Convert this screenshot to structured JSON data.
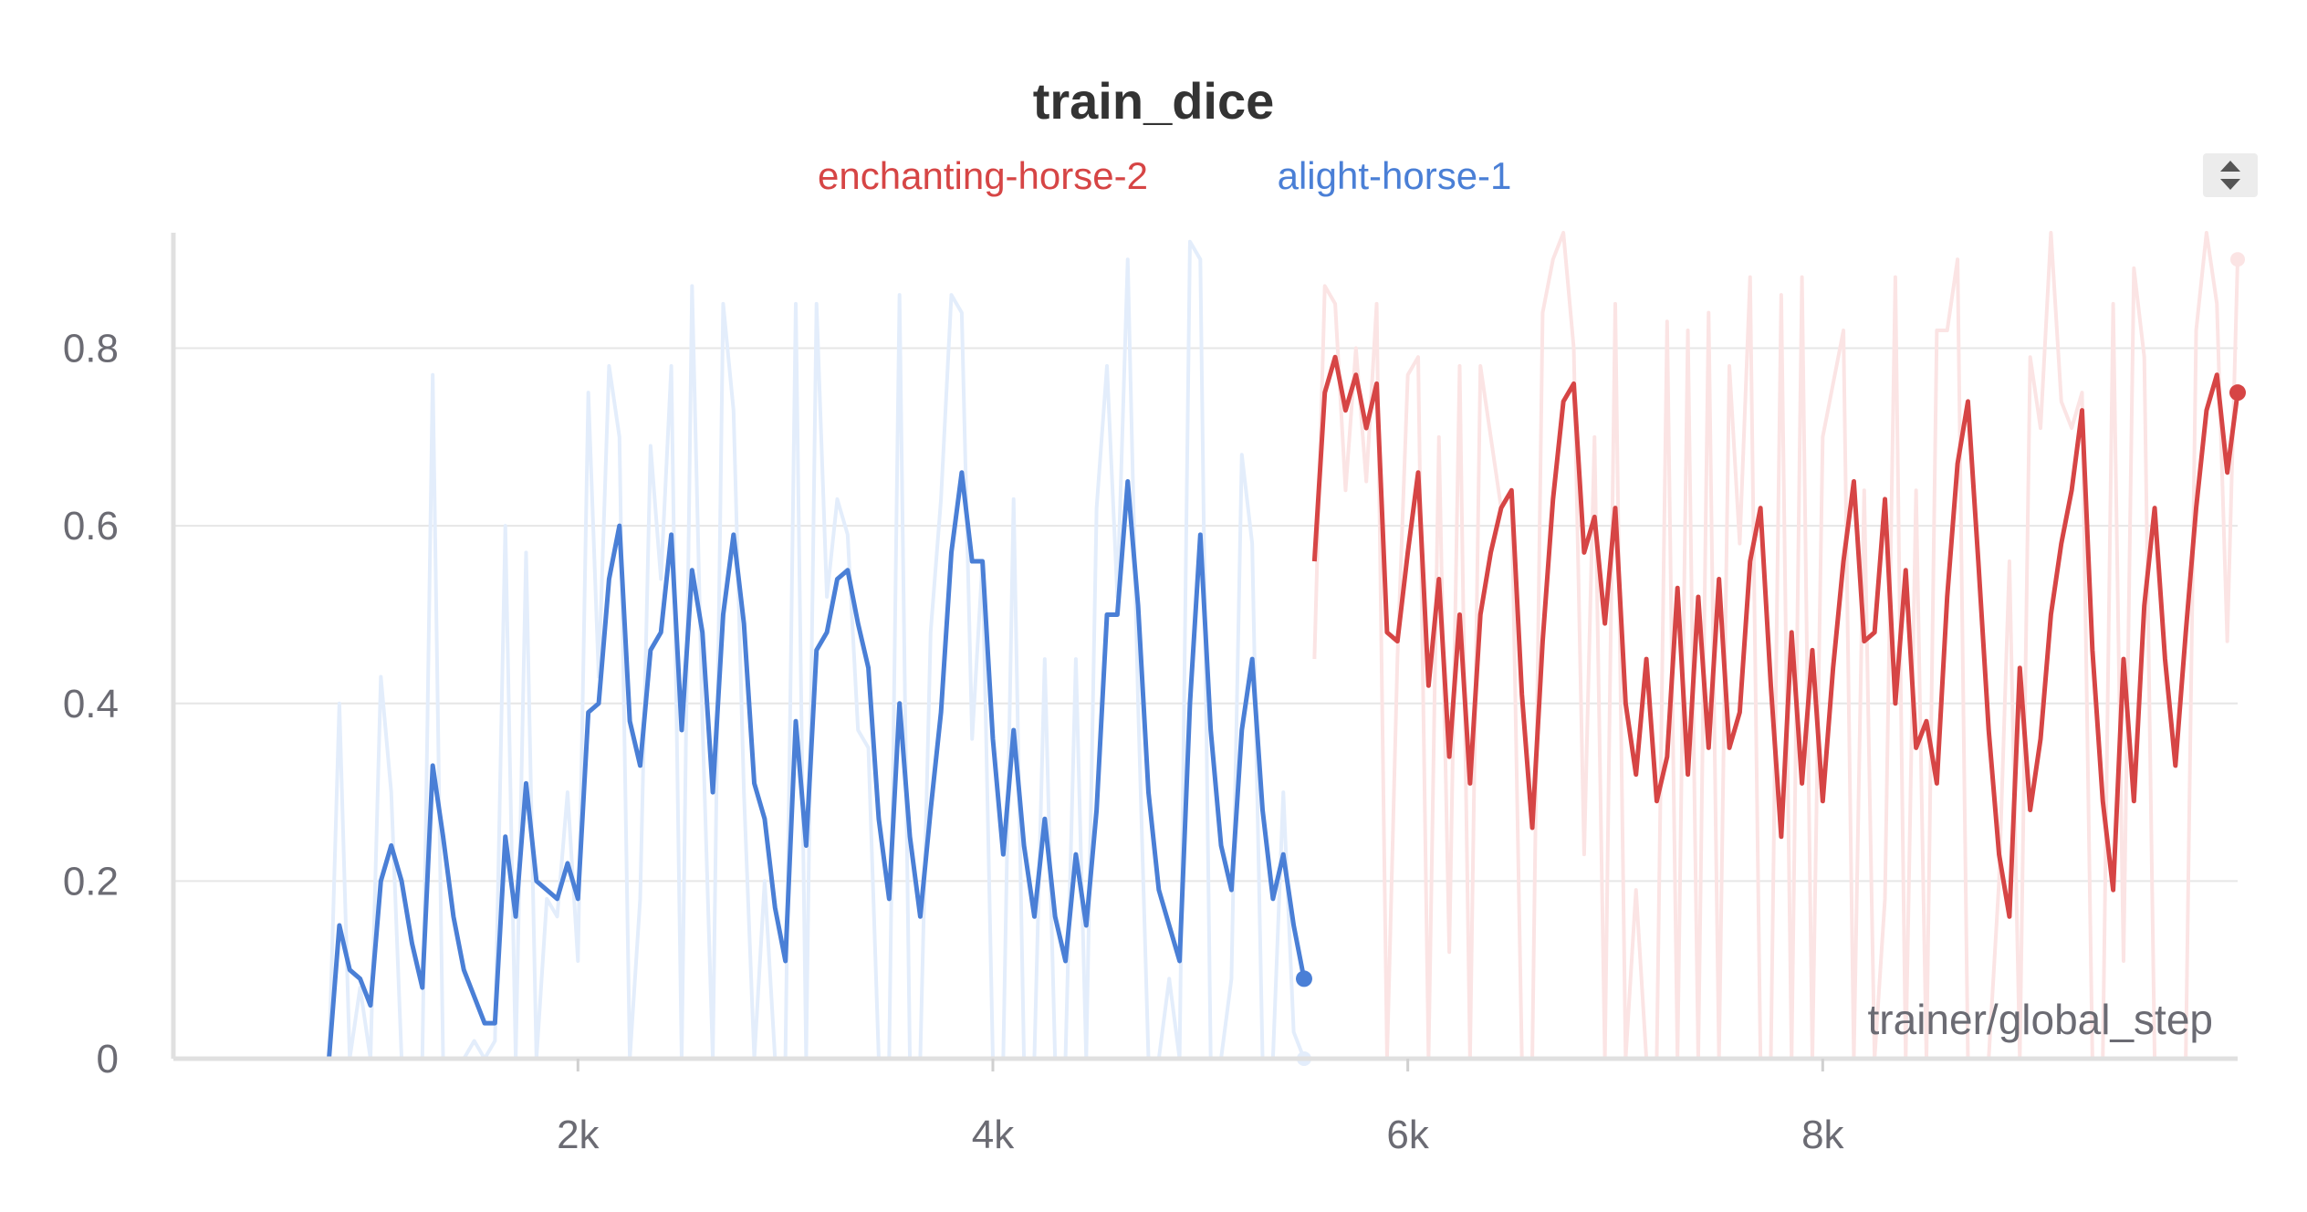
{
  "chart_data": {
    "type": "line",
    "title": "train_dice",
    "xlabel": "trainer/global_step",
    "ylabel": "",
    "xlim": [
      50,
      10000
    ],
    "ylim": [
      0,
      0.93
    ],
    "x_ticks": [
      2000,
      4000,
      6000,
      8000
    ],
    "x_tick_labels": [
      "2k",
      "4k",
      "6k",
      "8k"
    ],
    "y_ticks": [
      0,
      0.2,
      0.4,
      0.6,
      0.8
    ],
    "y_tick_labels": [
      "0",
      "0.2",
      "0.4",
      "0.6",
      "0.8"
    ],
    "grid": true,
    "legend_position": "top-center",
    "series": [
      {
        "name": "enchanting-horse-2",
        "color": "#d64545",
        "raw_color": "#fbe4e4",
        "x_start": 5550,
        "x_step": 50,
        "smoothed": [
          0.56,
          0.75,
          0.79,
          0.73,
          0.77,
          0.71,
          0.76,
          0.48,
          0.47,
          0.57,
          0.66,
          0.42,
          0.54,
          0.34,
          0.5,
          0.31,
          0.5,
          0.57,
          0.62,
          0.64,
          0.41,
          0.26,
          0.47,
          0.63,
          0.74,
          0.76,
          0.57,
          0.61,
          0.49,
          0.62,
          0.4,
          0.32,
          0.45,
          0.29,
          0.34,
          0.53,
          0.32,
          0.52,
          0.35,
          0.54,
          0.35,
          0.39,
          0.56,
          0.62,
          0.42,
          0.25,
          0.48,
          0.31,
          0.46,
          0.29,
          0.44,
          0.56,
          0.65,
          0.47,
          0.48,
          0.63,
          0.4,
          0.55,
          0.35,
          0.38,
          0.31,
          0.52,
          0.67,
          0.74,
          0.56,
          0.37,
          0.23,
          0.16,
          0.44,
          0.28,
          0.36,
          0.5,
          0.58,
          0.64,
          0.73,
          0.46,
          0.29,
          0.19,
          0.45,
          0.29,
          0.51,
          0.62,
          0.45,
          0.33,
          0.48,
          0.62,
          0.73,
          0.77,
          0.66,
          0.75
        ],
        "raw": [
          0.45,
          0.87,
          0.85,
          0.64,
          0.8,
          0.65,
          0.85,
          0.0,
          0.45,
          0.77,
          0.79,
          0.0,
          0.7,
          0.12,
          0.78,
          0.0,
          0.78,
          0.7,
          0.62,
          0.64,
          0.0,
          0.0,
          0.84,
          0.9,
          0.93,
          0.8,
          0.23,
          0.7,
          0.0,
          0.85,
          0.0,
          0.19,
          0.0,
          0.0,
          0.83,
          0.0,
          0.82,
          0.0,
          0.84,
          0.0,
          0.78,
          0.58,
          0.88,
          0.0,
          0.0,
          0.86,
          0.0,
          0.88,
          0.0,
          0.7,
          0.76,
          0.82,
          0.0,
          0.64,
          0.0,
          0.18,
          0.88,
          0.0,
          0.64,
          0.0,
          0.82,
          0.82,
          0.9,
          0.0,
          0.0,
          0.0,
          0.2,
          0.56,
          0.0,
          0.79,
          0.71,
          0.93,
          0.74,
          0.71,
          0.75,
          0.0,
          0.0,
          0.85,
          0.11,
          0.89,
          0.79,
          0.0,
          0.0,
          0.0,
          0.0,
          0.82,
          0.93,
          0.85,
          0.47,
          0.9
        ]
      },
      {
        "name": "alight-horse-1",
        "color": "#4a7fd6",
        "raw_color": "#e3edfb",
        "x_start": 800,
        "x_step": 50,
        "smoothed": [
          0.0,
          0.15,
          0.1,
          0.09,
          0.06,
          0.2,
          0.24,
          0.2,
          0.13,
          0.08,
          0.33,
          0.25,
          0.16,
          0.1,
          0.07,
          0.04,
          0.04,
          0.25,
          0.16,
          0.31,
          0.2,
          0.19,
          0.18,
          0.22,
          0.18,
          0.39,
          0.4,
          0.54,
          0.6,
          0.38,
          0.33,
          0.46,
          0.48,
          0.59,
          0.37,
          0.55,
          0.48,
          0.3,
          0.5,
          0.59,
          0.49,
          0.31,
          0.27,
          0.17,
          0.11,
          0.38,
          0.24,
          0.46,
          0.48,
          0.54,
          0.55,
          0.49,
          0.44,
          0.27,
          0.18,
          0.4,
          0.25,
          0.16,
          0.28,
          0.39,
          0.57,
          0.66,
          0.56,
          0.56,
          0.36,
          0.23,
          0.37,
          0.24,
          0.16,
          0.27,
          0.16,
          0.11,
          0.23,
          0.15,
          0.28,
          0.5,
          0.5,
          0.65,
          0.51,
          0.3,
          0.19,
          0.15,
          0.11,
          0.4,
          0.59,
          0.37,
          0.24,
          0.19,
          0.37,
          0.45,
          0.28,
          0.18,
          0.23,
          0.15,
          0.09
        ],
        "raw": [
          0.0,
          0.4,
          0.0,
          0.08,
          0.0,
          0.43,
          0.3,
          0.0,
          0.0,
          0.0,
          0.77,
          0.0,
          0.0,
          0.0,
          0.02,
          0.0,
          0.02,
          0.6,
          0.0,
          0.57,
          0.0,
          0.18,
          0.16,
          0.3,
          0.11,
          0.75,
          0.43,
          0.78,
          0.7,
          0.0,
          0.18,
          0.69,
          0.54,
          0.78,
          0.0,
          0.87,
          0.38,
          0.0,
          0.85,
          0.73,
          0.3,
          0.0,
          0.2,
          0.0,
          0.0,
          0.85,
          0.0,
          0.85,
          0.52,
          0.63,
          0.59,
          0.37,
          0.35,
          0.0,
          0.0,
          0.86,
          0.0,
          0.0,
          0.48,
          0.63,
          0.86,
          0.84,
          0.36,
          0.56,
          0.0,
          0.0,
          0.63,
          0.0,
          0.0,
          0.45,
          0.0,
          0.0,
          0.45,
          0.0,
          0.62,
          0.78,
          0.52,
          0.9,
          0.4,
          0.0,
          0.0,
          0.09,
          0.0,
          0.92,
          0.9,
          0.0,
          0.0,
          0.09,
          0.68,
          0.58,
          0.0,
          0.0,
          0.3,
          0.03,
          0.0
        ]
      }
    ]
  },
  "controls": {
    "scroll_icon": "sort-arrows-icon"
  }
}
